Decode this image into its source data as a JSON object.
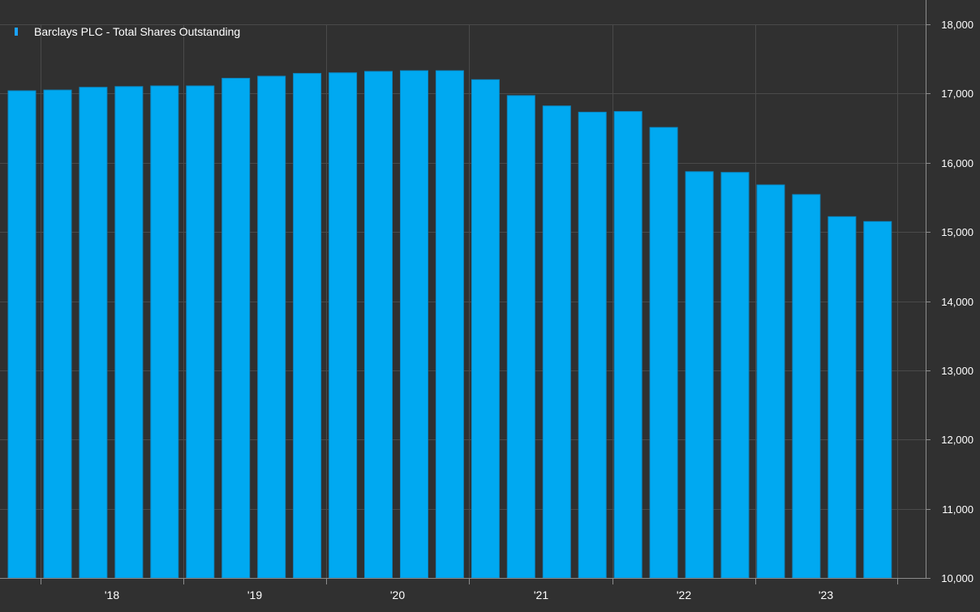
{
  "colors": {
    "background": "#303030",
    "bar": "#00a9f1",
    "bar_edge": "#0a88c4",
    "grid": "#4a4a4a",
    "axis": "#8c8c8c",
    "text": "#ffffff",
    "legend_swatch": "#1aa3ff"
  },
  "chart_data": {
    "type": "bar",
    "legend": {
      "placement": "top-left",
      "entries": [
        "Barclays PLC - Total Shares Outstanding"
      ]
    },
    "series": [
      {
        "name": "Barclays PLC - Total Shares Outstanding",
        "values": [
          17040,
          17050,
          17090,
          17100,
          17110,
          17110,
          17220,
          17250,
          17290,
          17300,
          17320,
          17330,
          17330,
          17200,
          16970,
          16820,
          16730,
          16740,
          16510,
          15870,
          15860,
          15680,
          15540,
          15220,
          15150
        ]
      }
    ],
    "x_tick_labels": [
      "'18",
      "'19",
      "'20",
      "'21",
      "'22",
      "'23"
    ],
    "y_ticks": [
      "10,000",
      "11,000",
      "12,000",
      "13,000",
      "14,000",
      "15,000",
      "16,000",
      "17,000",
      "18,000"
    ],
    "ylim": [
      10000,
      18000
    ],
    "y_axis_position": "right",
    "grid": true,
    "title": "",
    "xlabel": "",
    "ylabel": ""
  }
}
